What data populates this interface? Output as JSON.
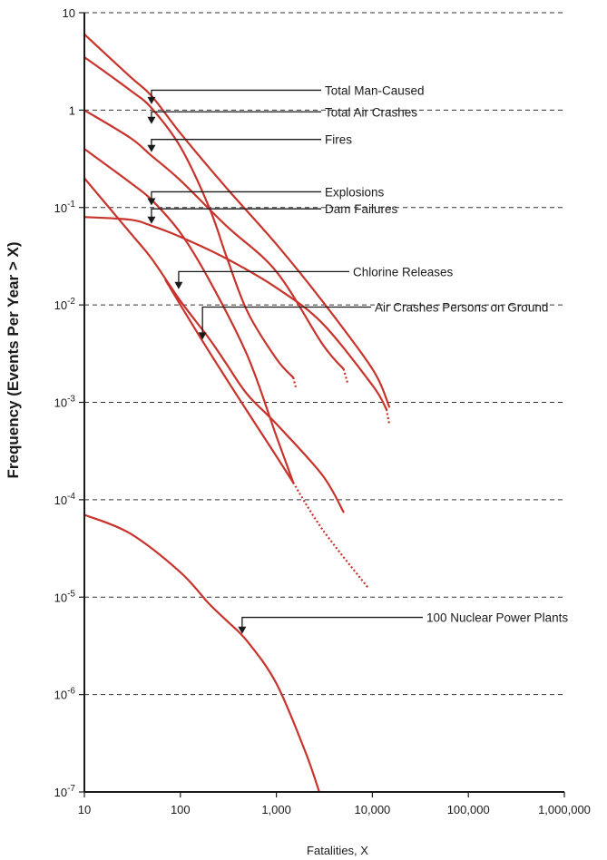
{
  "chart_data": {
    "type": "line",
    "title": "",
    "xlabel": "Fatalities, X",
    "ylabel": "Frequency (Events Per Year > X)",
    "x_scale": "log",
    "y_scale": "log",
    "xlim": [
      10,
      1000000
    ],
    "ylim": [
      1e-07,
      10
    ],
    "grid": "horizontal dashed",
    "x_ticks": [
      "10",
      "100",
      "1,000",
      "10,000",
      "100,000",
      "1,000,000"
    ],
    "y_ticks": [
      {
        "base": "10",
        "exp": "-7",
        "text": ""
      },
      {
        "base": "10",
        "exp": "-6",
        "text": ""
      },
      {
        "base": "10",
        "exp": "-5",
        "text": ""
      },
      {
        "base": "10",
        "exp": "-4",
        "text": ""
      },
      {
        "base": "10",
        "exp": "-3",
        "text": ""
      },
      {
        "base": "10",
        "exp": "-2",
        "text": ""
      },
      {
        "base": "10",
        "exp": "-1",
        "text": ""
      },
      {
        "base": "",
        "exp": "",
        "text": "1"
      },
      {
        "base": "",
        "exp": "",
        "text": "10"
      }
    ],
    "colors": {
      "curve": "#c8332b",
      "axis": "#1a1a1a",
      "grid": "#333333"
    },
    "series": [
      {
        "name": "Total Man-Caused",
        "x": [
          10,
          30,
          50,
          100,
          300,
          1000,
          3000,
          10000,
          15000
        ],
        "y": [
          6,
          2.2,
          1.4,
          0.58,
          0.16,
          0.042,
          0.011,
          0.0022,
          0.0009
        ],
        "dotted_x": []
      },
      {
        "name": "Total Air Crashes",
        "x": [
          10,
          30,
          50,
          100,
          200,
          300,
          500,
          1000,
          1500
        ],
        "y": [
          3.5,
          1.6,
          1.05,
          0.42,
          0.1,
          0.032,
          0.0085,
          0.0028,
          0.0018
        ],
        "dotted_x": [
          1500,
          1600
        ],
        "dotted_y": [
          0.0018,
          0.0014
        ]
      },
      {
        "name": "Fires",
        "x": [
          10,
          30,
          50,
          100,
          300,
          1000,
          3000,
          5000
        ],
        "y": [
          1,
          0.52,
          0.34,
          0.19,
          0.065,
          0.022,
          0.004,
          0.0022
        ],
        "dotted_x": [
          5000,
          5500
        ],
        "dotted_y": [
          0.0022,
          0.0016
        ]
      },
      {
        "name": "Explosions",
        "x": [
          10,
          30,
          50,
          100,
          200,
          500,
          1000,
          1500
        ],
        "y": [
          0.4,
          0.18,
          0.12,
          0.055,
          0.018,
          0.003,
          0.00045,
          0.00015
        ],
        "dotted_x": [
          1500,
          3000,
          9000
        ],
        "dotted_y": [
          0.00015,
          5e-05,
          1.25e-05
        ]
      },
      {
        "name": "Dam Failures",
        "x": [
          10,
          30,
          50,
          100,
          200,
          300,
          500,
          1000,
          3000,
          5000
        ],
        "y": [
          0.2,
          0.055,
          0.03,
          0.011,
          0.0045,
          0.0025,
          0.0012,
          0.0006,
          0.00018,
          7.5e-05
        ],
        "dotted_x": []
      },
      {
        "name": "Chlorine Releases",
        "x": [
          10,
          30,
          50,
          100,
          300,
          1000,
          3000,
          10000,
          14000
        ],
        "y": [
          0.08,
          0.075,
          0.065,
          0.05,
          0.03,
          0.015,
          0.0065,
          0.0015,
          0.00085
        ],
        "dotted_x": [
          14000,
          15000
        ],
        "dotted_y": [
          0.00085,
          0.0006
        ]
      },
      {
        "name": "Air Crashes Persons on Ground",
        "x": [
          70,
          100,
          200,
          500,
          1000,
          1500
        ],
        "y": [
          0.018,
          0.01,
          0.0033,
          0.0008,
          0.00028,
          0.00015
        ],
        "dotted_x": []
      },
      {
        "name": "100 Nuclear Power Plants",
        "x": [
          10,
          30,
          100,
          200,
          300,
          500,
          1000,
          2000,
          2800
        ],
        "y": [
          7e-05,
          4.5e-05,
          1.8e-05,
          8.5e-06,
          5.8e-06,
          3.5e-06,
          1.3e-06,
          2.6e-07,
          1e-07
        ],
        "dotted_x": []
      }
    ],
    "annotations": [
      {
        "text": "Total Man-Caused",
        "series": "Total Man-Caused",
        "label_y": 1.6,
        "arrow_x": 50,
        "arrow_target_y": 1.15
      },
      {
        "text": "Total Air Crashes",
        "series": "Total Air Crashes",
        "label_y": 0.96,
        "arrow_x": 50,
        "arrow_target_y": 0.72
      },
      {
        "text": "Fires",
        "series": "Fires",
        "label_y": 0.5,
        "arrow_x": 50,
        "arrow_target_y": 0.37
      },
      {
        "text": "Explosions",
        "series": "Explosions",
        "label_y": 0.145,
        "arrow_x": 50,
        "arrow_target_y": 0.105
      },
      {
        "text": "Dam Failures",
        "series": "Dam Failures",
        "label_y": 0.097,
        "arrow_x": 50,
        "arrow_target_y": 0.068
      },
      {
        "text": "Chlorine Releases",
        "series": "Air Crashes Persons on Ground",
        "label_y": 0.022,
        "arrow_x": 96,
        "arrow_target_y": 0.0145
      },
      {
        "text": "Air Crashes Persons on Ground",
        "series": "Dam Failures",
        "label_y": 0.0095,
        "arrow_x": 170,
        "arrow_target_y": 0.0044
      },
      {
        "text": "100 Nuclear Power Plants",
        "series": "100 Nuclear Power Plants",
        "label_y": 6.2e-06,
        "arrow_x": 440,
        "arrow_target_y": 4.2e-06
      }
    ]
  }
}
